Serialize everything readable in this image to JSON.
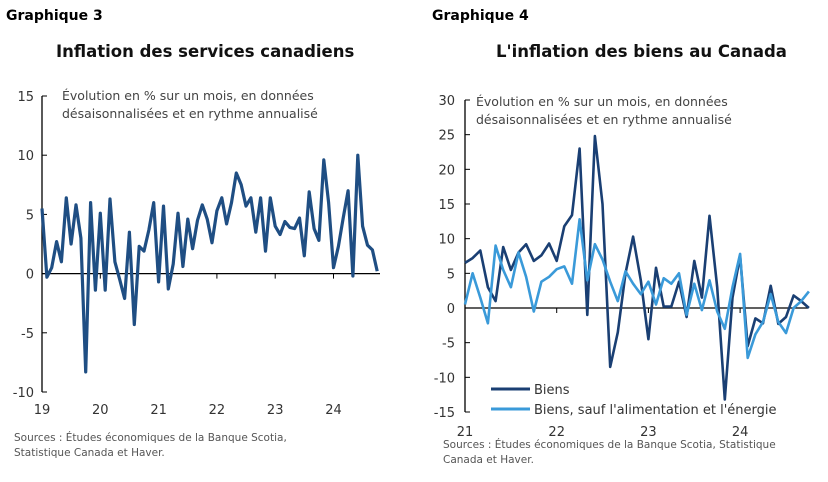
{
  "chart_data": [
    {
      "type": "line",
      "label": "Graphique 3",
      "title": "Inflation des services canadiens",
      "annotation": [
        "Évolution en % sur un mois, en données",
        "désaisonnalisées et en rythme annualisé"
      ],
      "ylim": [
        -10,
        15
      ],
      "yticks": [
        "15",
        "10",
        "5",
        "0",
        "-5",
        "-10"
      ],
      "ytick_values": [
        15,
        10,
        5,
        0,
        -5,
        -10
      ],
      "xticks": [
        "19",
        "20",
        "21",
        "22",
        "23",
        "24"
      ],
      "x_start": "2019-01",
      "x_end": "2024-10",
      "sources": [
        "Sources : Études économiques de la Banque Scotia,",
        "Statistique Canada et Haver."
      ],
      "series": [
        {
          "color": "#1f4e83",
          "values": [
            5.5,
            -0.3,
            0.5,
            2.7,
            1,
            6.4,
            2.5,
            5.8,
            3,
            -8.3,
            6,
            -1.4,
            5.1,
            -1.4,
            6.3,
            1,
            -0.5,
            -2.1,
            3.5,
            -4.3,
            2.3,
            1.9,
            3.7,
            6,
            -0.7,
            5.7,
            -1.3,
            0.8,
            5.1,
            0.6,
            4.6,
            2.1,
            4.5,
            5.8,
            4.6,
            2.6,
            5.3,
            6.4,
            4.2,
            6,
            8.5,
            7.5,
            5.7,
            6.4,
            3.5,
            6.4,
            1.9,
            6.4,
            4,
            3.3,
            4.4,
            3.9,
            3.8,
            4.7,
            1.5,
            6.9,
            3.8,
            2.8,
            9.6,
            6,
            0.5,
            2.3,
            4.7,
            7,
            -0.2,
            10,
            4,
            2.4,
            2,
            0.2
          ]
        }
      ]
    },
    {
      "type": "line",
      "label": "Graphique 4",
      "title": "L'inflation des biens au Canada",
      "annotation": [
        "Évolution en % sur un mois, en données",
        "désaisonnalisées et en rythme annualisé"
      ],
      "ylim": [
        -15,
        30
      ],
      "yticks": [
        "30",
        "25",
        "20",
        "15",
        "10",
        "5",
        "0",
        "-5",
        "-10",
        "-15"
      ],
      "ytick_values": [
        30,
        25,
        20,
        15,
        10,
        5,
        0,
        -5,
        -10,
        -15
      ],
      "xticks": [
        "21",
        "22",
        "23",
        "24"
      ],
      "x_start": "2021-01",
      "x_end": "2024-10",
      "legend": "bottom-left",
      "sources": [
        "Sources : Études économiques de la Banque Scotia, Statistique",
        "Canada et Haver."
      ],
      "series": [
        {
          "name": "Biens",
          "color": "#1a3f73",
          "values": [
            6.5,
            7.2,
            8.3,
            3,
            1,
            8.8,
            5.5,
            8,
            9.2,
            6.8,
            7.6,
            9.3,
            6.8,
            11.8,
            13.4,
            23,
            -1,
            24.8,
            15,
            -8.5,
            -3.5,
            5,
            10.3,
            4,
            -4.5,
            5.8,
            0.2,
            0.2,
            3.8,
            -1.3,
            6.8,
            1.5,
            13.3,
            3,
            -13.2,
            1.5,
            7.5,
            -5.5,
            -1.5,
            -2.2,
            3.2,
            -2.3,
            -1.3,
            1.8,
            1,
            0
          ]
        },
        {
          "name": "Biens, sauf l'alimentation et l'énergie",
          "color": "#3a9ad9",
          "values": [
            0.5,
            5,
            1.5,
            -2.2,
            9,
            5.5,
            3,
            8,
            4.5,
            -0.5,
            3.8,
            4.5,
            5.6,
            6,
            3.5,
            12.8,
            4,
            9.2,
            7,
            3.8,
            1,
            5.3,
            3.5,
            2,
            3.8,
            0.5,
            4.3,
            3.5,
            5,
            -1,
            3.5,
            -0.3,
            4,
            -0.5,
            -3,
            3,
            7.8,
            -7.2,
            -3.8,
            -2,
            2,
            -2,
            -3.6,
            0,
            1,
            2.4
          ]
        }
      ]
    }
  ]
}
